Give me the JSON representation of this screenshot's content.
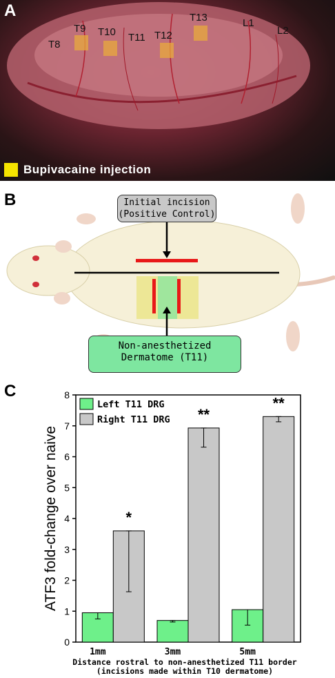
{
  "panel_a": {
    "letter": "A",
    "segments": [
      "T8",
      "T9",
      "T10",
      "T11",
      "T12",
      "T13",
      "L1",
      "L2"
    ],
    "legend": "Bupivacaine injection",
    "colors": {
      "injection_marker": "#f5e400"
    }
  },
  "panel_b": {
    "letter": "B",
    "callout_top": [
      "Initial incision",
      "(Positive Control)"
    ],
    "callout_bottom": [
      "Non-anesthetized",
      "Dermatome (T11)"
    ],
    "colors": {
      "incision": "#e81818",
      "dermatome": "#7ee6a0",
      "anesthetized_zone": "#e6e060"
    }
  },
  "panel_c": {
    "letter": "C"
  },
  "chart_data": {
    "type": "bar",
    "categories": [
      "1mm",
      "3mm",
      "5mm"
    ],
    "series": [
      {
        "name": "Left T11 DRG",
        "color": "#6ef08a",
        "values": [
          0.95,
          0.7,
          1.05
        ],
        "err_low": [
          0.2,
          0.05,
          0.5
        ],
        "err_high": [
          0.0,
          0.0,
          0.0
        ]
      },
      {
        "name": "Right T11 DRG",
        "color": "#c8c8c8",
        "values": [
          3.6,
          6.93,
          7.3
        ],
        "err_low": [
          1.97,
          0.62,
          0.17
        ],
        "err_high": [
          0.0,
          0.0,
          0.0
        ]
      }
    ],
    "significance": [
      "*",
      "**",
      "**"
    ],
    "ylabel": "ATF3 fold-change over naive",
    "xlabel": [
      "Distance rostral to non-anesthetized T11 border",
      "(incisions made within T10 dermatome)"
    ],
    "ylim": [
      0,
      8
    ],
    "yticks": [
      "0",
      "1",
      "2",
      "3",
      "4",
      "5",
      "6",
      "7",
      "8"
    ],
    "legend_position": "top-left"
  }
}
